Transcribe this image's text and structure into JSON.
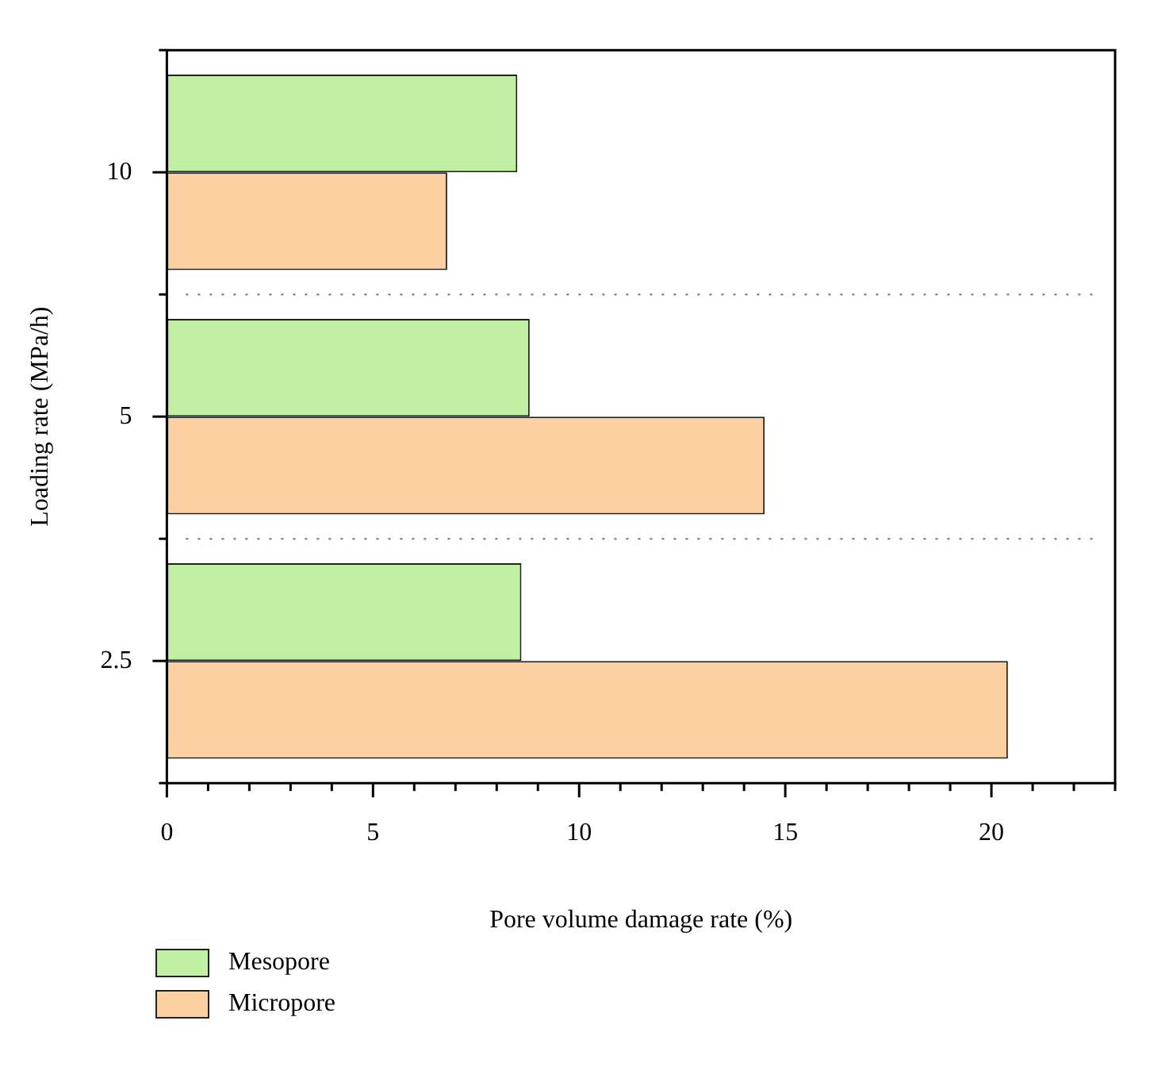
{
  "chart_data": {
    "type": "bar",
    "orientation": "horizontal",
    "xlabel": "Pore volume damage rate (%)",
    "ylabel": "Loading rate (MPa/h)",
    "categories": [
      "10",
      "5",
      "2.5"
    ],
    "series": [
      {
        "name": "Mesopore",
        "color": "#c1efa3",
        "values": [
          8.5,
          8.8,
          8.6
        ]
      },
      {
        "name": "Micropore",
        "color": "#fdd0a2",
        "values": [
          6.8,
          14.5,
          20.4
        ]
      }
    ],
    "xlim": [
      0,
      23
    ],
    "xticks": [
      0,
      {
        "value": 1,
        "label": null
      },
      {
        "value": 2,
        "label": null
      },
      {
        "value": 3,
        "label": null
      },
      {
        "value": 4,
        "label": null
      },
      5,
      {
        "value": 6,
        "label": null
      },
      {
        "value": 7,
        "label": null
      },
      {
        "value": 8,
        "label": null
      },
      {
        "value": 9,
        "label": null
      },
      10,
      {
        "value": 11,
        "label": null
      },
      {
        "value": 12,
        "label": null
      },
      {
        "value": 13,
        "label": null
      },
      {
        "value": 14,
        "label": null
      },
      15,
      {
        "value": 16,
        "label": null
      },
      {
        "value": 17,
        "label": null
      },
      {
        "value": 18,
        "label": null
      },
      {
        "value": 19,
        "label": null
      },
      20,
      {
        "value": 21,
        "label": null
      },
      {
        "value": 22,
        "label": null
      },
      {
        "value": 23,
        "label": null
      }
    ],
    "grid": "y",
    "legend": "bottom left"
  }
}
